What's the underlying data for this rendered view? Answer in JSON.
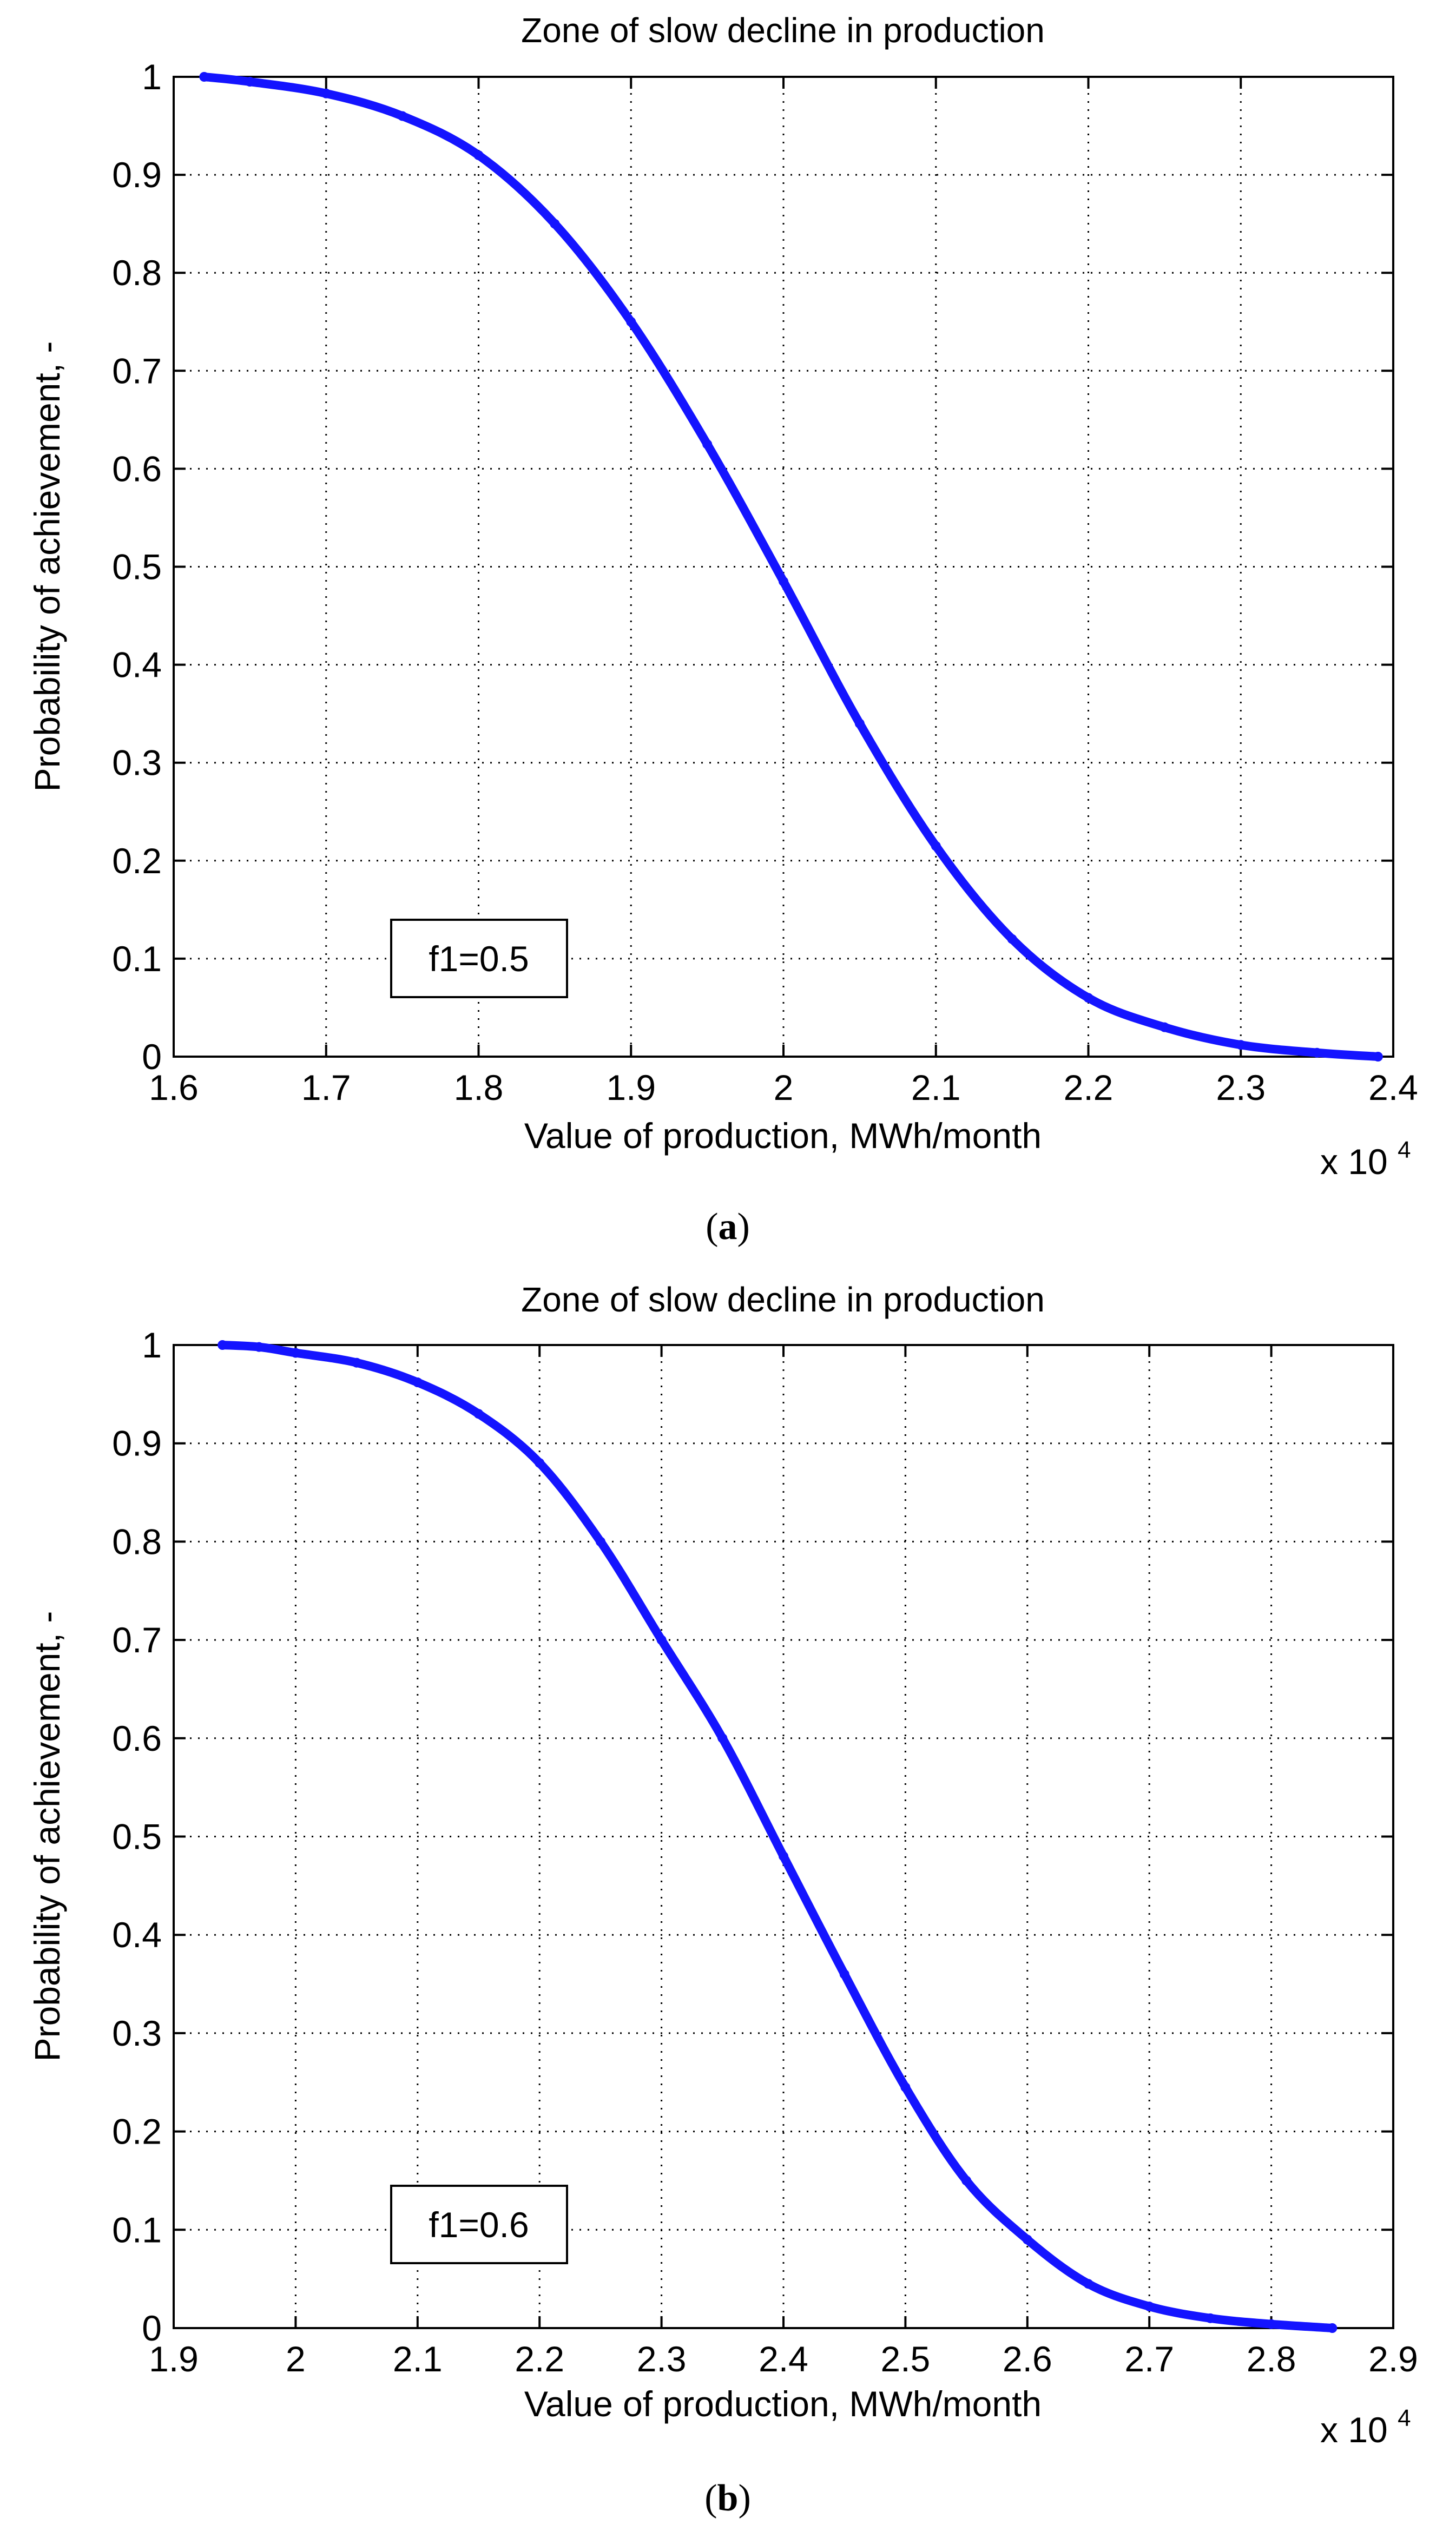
{
  "chart_data": [
    {
      "type": "line",
      "panel_label": "a",
      "title": "Zone of slow decline in production",
      "xlabel": "Value of production, MWh/month",
      "ylabel": "Probability of achievement, -",
      "x_multiplier": "x 10",
      "x_multiplier_exp": "4",
      "xlim": [
        1.6,
        2.4
      ],
      "ylim": [
        0,
        1
      ],
      "x_ticks": [
        "1.6",
        "1.7",
        "1.8",
        "1.9",
        "2",
        "2.1",
        "2.2",
        "2.3",
        "2.4"
      ],
      "y_ticks": [
        "0",
        "0.1",
        "0.2",
        "0.3",
        "0.4",
        "0.5",
        "0.6",
        "0.7",
        "0.8",
        "0.9",
        "1"
      ],
      "grid": true,
      "annotation": "f1=0.5",
      "series": [
        {
          "name": "f1=0.5",
          "color": "#1414ff",
          "x": [
            1.62,
            1.65,
            1.7,
            1.75,
            1.8,
            1.85,
            1.9,
            1.95,
            2.0,
            2.05,
            2.1,
            2.15,
            2.2,
            2.25,
            2.3,
            2.35,
            2.39
          ],
          "y": [
            1.0,
            0.995,
            0.983,
            0.96,
            0.92,
            0.85,
            0.75,
            0.625,
            0.485,
            0.34,
            0.215,
            0.12,
            0.06,
            0.03,
            0.012,
            0.004,
            0.0
          ]
        }
      ]
    },
    {
      "type": "line",
      "panel_label": "b",
      "title": "Zone of slow decline in production",
      "xlabel": "Value of production, MWh/month",
      "ylabel": "Probability of achievement, -",
      "x_multiplier": "x 10",
      "x_multiplier_exp": "4",
      "xlim": [
        1.9,
        2.9
      ],
      "ylim": [
        0,
        1
      ],
      "x_ticks": [
        "1.9",
        "2",
        "2.1",
        "2.2",
        "2.3",
        "2.4",
        "2.5",
        "2.6",
        "2.7",
        "2.8",
        "2.9"
      ],
      "y_ticks": [
        "0",
        "0.1",
        "0.2",
        "0.3",
        "0.4",
        "0.5",
        "0.6",
        "0.7",
        "0.8",
        "0.9",
        "1"
      ],
      "grid": true,
      "annotation": "f1=0.6",
      "series": [
        {
          "name": "f1=0.6",
          "color": "#1414ff",
          "x": [
            1.94,
            1.97,
            2.0,
            2.05,
            2.1,
            2.15,
            2.2,
            2.25,
            2.3,
            2.35,
            2.4,
            2.45,
            2.5,
            2.55,
            2.6,
            2.65,
            2.7,
            2.75,
            2.8,
            2.85
          ],
          "y": [
            1.0,
            0.998,
            0.992,
            0.982,
            0.962,
            0.93,
            0.88,
            0.8,
            0.7,
            0.6,
            0.48,
            0.36,
            0.245,
            0.15,
            0.09,
            0.045,
            0.022,
            0.01,
            0.004,
            0.0
          ]
        }
      ]
    }
  ]
}
